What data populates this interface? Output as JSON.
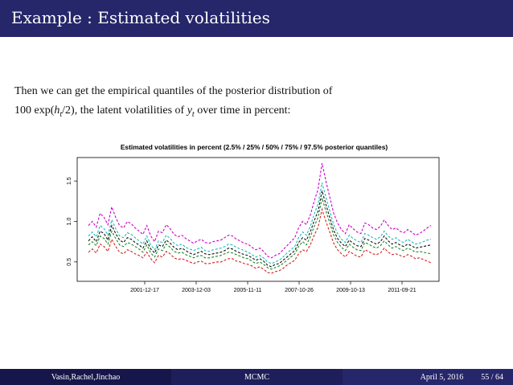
{
  "slide": {
    "title": "Example : Estimated volatilities",
    "text_line1": "Then we can get the empirical quantiles of the posterior distribution of",
    "formula_prefix": "100 exp(",
    "formula_h": "h",
    "formula_t": "t",
    "formula_suffix": "/2), the latent volatilities of ",
    "y_var": "y",
    "y_sub": "t",
    "text_tail": " over time in percent:"
  },
  "footer": {
    "authors": "Vasin,Rachel,Jinchao",
    "short_title": "MCMC",
    "date": "April 5, 2016",
    "page": "55 / 64"
  },
  "chart_data": {
    "type": "line",
    "title": "Estimated volatilities in percent (2.5% / 25% / 50% / 75% / 97.5% posterior quantiles)",
    "x_tick_labels": [
      "2001-12-17",
      "2003-12-03",
      "2005-11-11",
      "2007-10-26",
      "2009-10-13",
      "2011-09-21"
    ],
    "y_ticks": [
      0.5,
      1.0,
      1.5
    ],
    "y_tick_labels": [
      "0.5",
      "1.0",
      "1.5"
    ],
    "ylim": [
      0.3,
      1.75
    ],
    "x": [
      0,
      1,
      2,
      3,
      4,
      5,
      6,
      7,
      8,
      9,
      10,
      11,
      12,
      13,
      14,
      15,
      16,
      17,
      18,
      19,
      20,
      21,
      22,
      23,
      24,
      25,
      26,
      27,
      28,
      29,
      30,
      31,
      32,
      33,
      34,
      35,
      36,
      37,
      38,
      39,
      40,
      41,
      42,
      43,
      44,
      45,
      46,
      47,
      48,
      49,
      50,
      51,
      52,
      53,
      54,
      55,
      56,
      57,
      58,
      59,
      60,
      61,
      62,
      63,
      64,
      65,
      66,
      67,
      68,
      69,
      70,
      71,
      72,
      73,
      74,
      75,
      76,
      77,
      78,
      79,
      80,
      81,
      82,
      83,
      84,
      85,
      86,
      87,
      88
    ],
    "series": [
      {
        "name": "97.5%",
        "color": "#cc00cc",
        "values": [
          0.95,
          1.0,
          0.93,
          1.1,
          1.05,
          0.96,
          1.18,
          1.05,
          0.95,
          0.92,
          1.0,
          0.97,
          0.92,
          0.88,
          0.84,
          0.95,
          0.82,
          0.75,
          0.88,
          0.86,
          0.96,
          0.91,
          0.84,
          0.81,
          0.83,
          0.79,
          0.76,
          0.73,
          0.76,
          0.78,
          0.74,
          0.73,
          0.75,
          0.76,
          0.77,
          0.8,
          0.83,
          0.82,
          0.78,
          0.76,
          0.73,
          0.72,
          0.68,
          0.65,
          0.67,
          0.63,
          0.57,
          0.55,
          0.58,
          0.6,
          0.65,
          0.7,
          0.75,
          0.8,
          0.92,
          1.0,
          0.96,
          1.08,
          1.25,
          1.4,
          1.72,
          1.5,
          1.3,
          1.1,
          0.98,
          0.9,
          0.85,
          0.96,
          0.91,
          0.87,
          0.85,
          0.98,
          0.96,
          0.92,
          0.9,
          0.94,
          1.02,
          0.95,
          0.9,
          0.92,
          0.88,
          0.86,
          0.9,
          0.87,
          0.83,
          0.85,
          0.88,
          0.92,
          0.95
        ]
      },
      {
        "name": "75%",
        "color": "#22b8b8",
        "values": [
          0.82,
          0.87,
          0.81,
          0.95,
          0.91,
          0.83,
          1.02,
          0.91,
          0.82,
          0.8,
          0.86,
          0.84,
          0.8,
          0.76,
          0.72,
          0.82,
          0.71,
          0.65,
          0.76,
          0.74,
          0.83,
          0.79,
          0.73,
          0.7,
          0.72,
          0.68,
          0.66,
          0.64,
          0.66,
          0.68,
          0.64,
          0.63,
          0.65,
          0.66,
          0.67,
          0.69,
          0.72,
          0.71,
          0.68,
          0.66,
          0.64,
          0.62,
          0.59,
          0.56,
          0.58,
          0.55,
          0.5,
          0.48,
          0.5,
          0.52,
          0.56,
          0.61,
          0.65,
          0.69,
          0.8,
          0.87,
          0.83,
          0.94,
          1.09,
          1.22,
          1.48,
          1.3,
          1.13,
          0.96,
          0.85,
          0.78,
          0.74,
          0.83,
          0.79,
          0.76,
          0.74,
          0.85,
          0.83,
          0.8,
          0.78,
          0.81,
          0.88,
          0.82,
          0.78,
          0.8,
          0.76,
          0.74,
          0.78,
          0.75,
          0.72,
          0.73,
          0.75,
          0.77,
          0.78
        ]
      },
      {
        "name": "50%",
        "color": "#111111",
        "values": [
          0.76,
          0.81,
          0.75,
          0.88,
          0.85,
          0.77,
          0.95,
          0.85,
          0.77,
          0.74,
          0.8,
          0.78,
          0.74,
          0.71,
          0.67,
          0.76,
          0.66,
          0.61,
          0.71,
          0.69,
          0.77,
          0.73,
          0.68,
          0.65,
          0.67,
          0.64,
          0.61,
          0.59,
          0.61,
          0.63,
          0.6,
          0.59,
          0.6,
          0.61,
          0.62,
          0.64,
          0.67,
          0.66,
          0.63,
          0.61,
          0.59,
          0.58,
          0.55,
          0.52,
          0.54,
          0.51,
          0.46,
          0.44,
          0.47,
          0.48,
          0.52,
          0.56,
          0.6,
          0.64,
          0.74,
          0.8,
          0.77,
          0.87,
          1.01,
          1.13,
          1.38,
          1.21,
          1.05,
          0.89,
          0.79,
          0.73,
          0.69,
          0.77,
          0.73,
          0.7,
          0.69,
          0.79,
          0.77,
          0.74,
          0.72,
          0.75,
          0.82,
          0.76,
          0.72,
          0.74,
          0.71,
          0.69,
          0.72,
          0.7,
          0.67,
          0.68,
          0.69,
          0.7,
          0.71
        ]
      },
      {
        "name": "25%",
        "color": "#1f8a2a",
        "values": [
          0.71,
          0.75,
          0.7,
          0.82,
          0.79,
          0.72,
          0.88,
          0.79,
          0.71,
          0.69,
          0.74,
          0.72,
          0.69,
          0.66,
          0.62,
          0.71,
          0.61,
          0.56,
          0.66,
          0.64,
          0.72,
          0.68,
          0.63,
          0.61,
          0.62,
          0.59,
          0.57,
          0.55,
          0.57,
          0.58,
          0.55,
          0.55,
          0.56,
          0.57,
          0.58,
          0.6,
          0.62,
          0.61,
          0.59,
          0.57,
          0.55,
          0.54,
          0.51,
          0.48,
          0.5,
          0.47,
          0.43,
          0.41,
          0.43,
          0.45,
          0.48,
          0.52,
          0.56,
          0.6,
          0.69,
          0.75,
          0.71,
          0.81,
          0.94,
          1.05,
          1.29,
          1.13,
          0.98,
          0.83,
          0.74,
          0.68,
          0.64,
          0.72,
          0.68,
          0.65,
          0.64,
          0.74,
          0.72,
          0.69,
          0.67,
          0.7,
          0.76,
          0.71,
          0.67,
          0.69,
          0.66,
          0.64,
          0.67,
          0.65,
          0.62,
          0.63,
          0.62,
          0.61,
          0.6
        ]
      },
      {
        "name": "2.5%",
        "color": "#d42020",
        "values": [
          0.62,
          0.66,
          0.61,
          0.72,
          0.69,
          0.63,
          0.78,
          0.69,
          0.62,
          0.6,
          0.65,
          0.63,
          0.6,
          0.58,
          0.55,
          0.62,
          0.54,
          0.49,
          0.58,
          0.56,
          0.63,
          0.6,
          0.55,
          0.53,
          0.54,
          0.52,
          0.5,
          0.48,
          0.5,
          0.51,
          0.48,
          0.48,
          0.49,
          0.5,
          0.5,
          0.52,
          0.54,
          0.54,
          0.51,
          0.5,
          0.48,
          0.47,
          0.45,
          0.42,
          0.44,
          0.41,
          0.37,
          0.36,
          0.38,
          0.39,
          0.42,
          0.46,
          0.49,
          0.52,
          0.6,
          0.65,
          0.63,
          0.71,
          0.83,
          0.93,
          1.15,
          1.0,
          0.87,
          0.73,
          0.65,
          0.6,
          0.56,
          0.63,
          0.6,
          0.57,
          0.56,
          0.65,
          0.63,
          0.6,
          0.59,
          0.61,
          0.67,
          0.62,
          0.59,
          0.6,
          0.58,
          0.56,
          0.59,
          0.57,
          0.54,
          0.55,
          0.53,
          0.51,
          0.49
        ]
      }
    ]
  }
}
